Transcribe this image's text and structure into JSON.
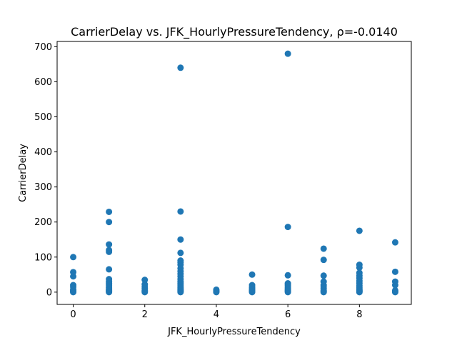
{
  "chart_data": {
    "type": "scatter",
    "title": "CarrierDelay vs. JFK_HourlyPressureTendency, ρ=-0.0140",
    "xlabel": "JFK_HourlyPressureTendency",
    "ylabel": "CarrierDelay",
    "xlim": [
      -0.45,
      9.45
    ],
    "ylim": [
      -35,
      715
    ],
    "xticks": [
      0,
      2,
      4,
      6,
      8
    ],
    "yticks": [
      0,
      100,
      200,
      300,
      400,
      500,
      600,
      700
    ],
    "grid": false,
    "marker_color": "#1f77b4",
    "series": [
      {
        "points": [
          [
            0,
            0
          ],
          [
            0,
            2
          ],
          [
            0,
            5
          ],
          [
            0,
            8
          ],
          [
            0,
            15
          ],
          [
            0,
            20
          ],
          [
            0,
            45
          ],
          [
            0,
            57
          ],
          [
            0,
            100
          ],
          [
            1,
            0
          ],
          [
            1,
            2
          ],
          [
            1,
            4
          ],
          [
            1,
            6
          ],
          [
            1,
            8
          ],
          [
            1,
            12
          ],
          [
            1,
            15
          ],
          [
            1,
            20
          ],
          [
            1,
            25
          ],
          [
            1,
            30
          ],
          [
            1,
            37
          ],
          [
            1,
            65
          ],
          [
            1,
            115
          ],
          [
            1,
            120
          ],
          [
            1,
            136
          ],
          [
            1,
            200
          ],
          [
            1,
            229
          ],
          [
            2,
            0
          ],
          [
            2,
            2
          ],
          [
            2,
            5
          ],
          [
            2,
            10
          ],
          [
            2,
            15
          ],
          [
            2,
            22
          ],
          [
            2,
            35
          ],
          [
            3,
            0
          ],
          [
            3,
            2
          ],
          [
            3,
            4
          ],
          [
            3,
            6
          ],
          [
            3,
            8
          ],
          [
            3,
            10
          ],
          [
            3,
            13
          ],
          [
            3,
            16
          ],
          [
            3,
            20
          ],
          [
            3,
            25
          ],
          [
            3,
            30
          ],
          [
            3,
            37
          ],
          [
            3,
            45
          ],
          [
            3,
            52
          ],
          [
            3,
            60
          ],
          [
            3,
            68
          ],
          [
            3,
            78
          ],
          [
            3,
            85
          ],
          [
            3,
            90
          ],
          [
            3,
            112
          ],
          [
            3,
            150
          ],
          [
            3,
            230
          ],
          [
            3,
            640
          ],
          [
            4,
            0
          ],
          [
            4,
            2
          ],
          [
            4,
            4
          ],
          [
            4,
            7
          ],
          [
            5,
            0
          ],
          [
            5,
            2
          ],
          [
            5,
            4
          ],
          [
            5,
            6
          ],
          [
            5,
            9
          ],
          [
            5,
            12
          ],
          [
            5,
            15
          ],
          [
            5,
            20
          ],
          [
            5,
            50
          ],
          [
            6,
            0
          ],
          [
            6,
            2
          ],
          [
            6,
            4
          ],
          [
            6,
            6
          ],
          [
            6,
            8
          ],
          [
            6,
            11
          ],
          [
            6,
            14
          ],
          [
            6,
            18
          ],
          [
            6,
            22
          ],
          [
            6,
            25
          ],
          [
            6,
            48
          ],
          [
            6,
            186
          ],
          [
            6,
            680
          ],
          [
            7,
            0
          ],
          [
            7,
            2
          ],
          [
            7,
            5
          ],
          [
            7,
            10
          ],
          [
            7,
            15
          ],
          [
            7,
            20
          ],
          [
            7,
            30
          ],
          [
            7,
            47
          ],
          [
            7,
            92
          ],
          [
            7,
            124
          ],
          [
            8,
            0
          ],
          [
            8,
            2
          ],
          [
            8,
            4
          ],
          [
            8,
            6
          ],
          [
            8,
            9
          ],
          [
            8,
            13
          ],
          [
            8,
            18
          ],
          [
            8,
            25
          ],
          [
            8,
            32
          ],
          [
            8,
            40
          ],
          [
            8,
            47
          ],
          [
            8,
            55
          ],
          [
            8,
            70
          ],
          [
            8,
            78
          ],
          [
            8,
            175
          ],
          [
            9,
            0
          ],
          [
            9,
            2
          ],
          [
            9,
            5
          ],
          [
            9,
            20
          ],
          [
            9,
            30
          ],
          [
            9,
            58
          ],
          [
            9,
            142
          ]
        ]
      }
    ]
  }
}
